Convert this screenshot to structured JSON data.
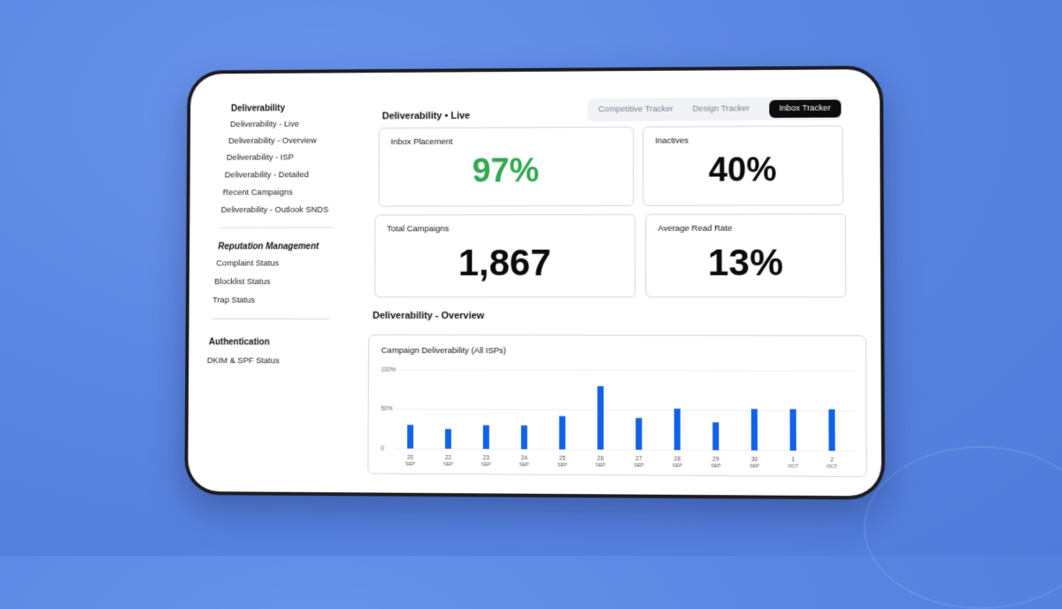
{
  "sidebar": {
    "sections": [
      {
        "title": "Deliverability",
        "items": [
          "Deliverability - Live",
          "Deliverability - Overview",
          "Deliverability - ISP",
          "Deliverability - Detailed",
          "Recent Campaigns",
          "Deliverability - Outlook SNDS"
        ]
      },
      {
        "title": "Reputation Management",
        "items": [
          "Complaint Status",
          "Blocklist Status",
          "Trap Status"
        ]
      },
      {
        "title": "Authentication",
        "items": [
          "DKIM & SPF Status"
        ]
      }
    ]
  },
  "tabs": [
    "Competitive Tracker",
    "Design Tracker",
    "Inbox Tracker"
  ],
  "live_title": "Deliverability • Live",
  "cards": {
    "inbox_placement": {
      "label": "Inbox Placement",
      "value": "97%"
    },
    "inactives": {
      "label": "Inactives",
      "value": "40%"
    },
    "total_campaigns": {
      "label": "Total Campaigns",
      "value": "1,867"
    },
    "avg_read_rate": {
      "label": "Average Read Rate",
      "value": "13%"
    }
  },
  "overview_title": "Deliverability - Overview",
  "chart_data": {
    "type": "bar",
    "title": "Campaign Deliverability (All ISPs)",
    "xlabel": "",
    "ylabel": "",
    "categories": [
      {
        "day": "20",
        "month": "SEP"
      },
      {
        "day": "22",
        "month": "SEP"
      },
      {
        "day": "23",
        "month": "SEP"
      },
      {
        "day": "24",
        "month": "SEP"
      },
      {
        "day": "25",
        "month": "SEP"
      },
      {
        "day": "26",
        "month": "SEP"
      },
      {
        "day": "27",
        "month": "SEP"
      },
      {
        "day": "28",
        "month": "SEP"
      },
      {
        "day": "29",
        "month": "SEP"
      },
      {
        "day": "30",
        "month": "SEP"
      },
      {
        "day": "1",
        "month": "OCT"
      },
      {
        "day": "2",
        "month": "OCT"
      }
    ],
    "values": [
      30,
      25,
      30,
      30,
      42,
      80,
      40,
      52,
      35,
      52,
      52,
      52
    ],
    "ylim": [
      0,
      100
    ],
    "yticks": [
      {
        "value": 0,
        "label": "0"
      },
      {
        "value": 50,
        "label": "50%"
      },
      {
        "value": 100,
        "label": "100%"
      }
    ],
    "bar_color": "#1063e8",
    "grid": true
  }
}
